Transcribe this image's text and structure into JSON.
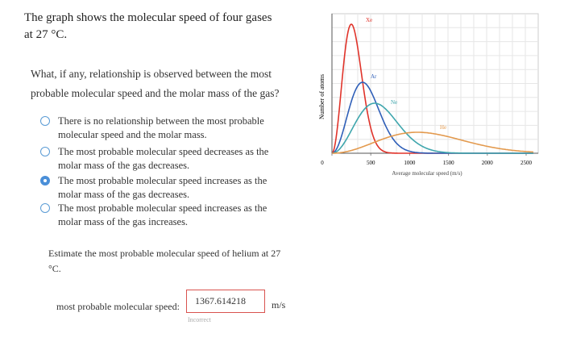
{
  "intro": "The graph shows the molecular speed of four gases at 27 °C.",
  "question": "What, if any, relationship is observed between the most probable molecular speed and the molar mass of the gas?",
  "options": [
    "There is no relationship between the most probable molecular speed and the molar mass.",
    "The most probable molecular speed decreases as the molar mass of the gas decreases.",
    "The most probable molecular speed increases as the molar mass of the gas decreases.",
    "The most probable molecular speed increases as the molar mass of the gas increases."
  ],
  "selected_option": 2,
  "graph": {
    "y_label": "Number of atoms",
    "x_label": "Average molecular speed (m/s)",
    "x_ticks": [
      0,
      500,
      1000,
      1500,
      2000,
      2500
    ],
    "gases": [
      {
        "name": "Xe",
        "color": "#e0332a"
      },
      {
        "name": "Ar",
        "color": "#2f5fb8"
      },
      {
        "name": "Ne",
        "color": "#3fa6ad"
      },
      {
        "name": "He",
        "color": "#e39a4e"
      }
    ]
  },
  "question2": "Estimate the most probable molecular speed of helium at 27 °C.",
  "answer": {
    "label": "most probable molecular speed:",
    "value": "1367.614218",
    "unit": "m/s",
    "feedback": "Incorrect"
  }
}
